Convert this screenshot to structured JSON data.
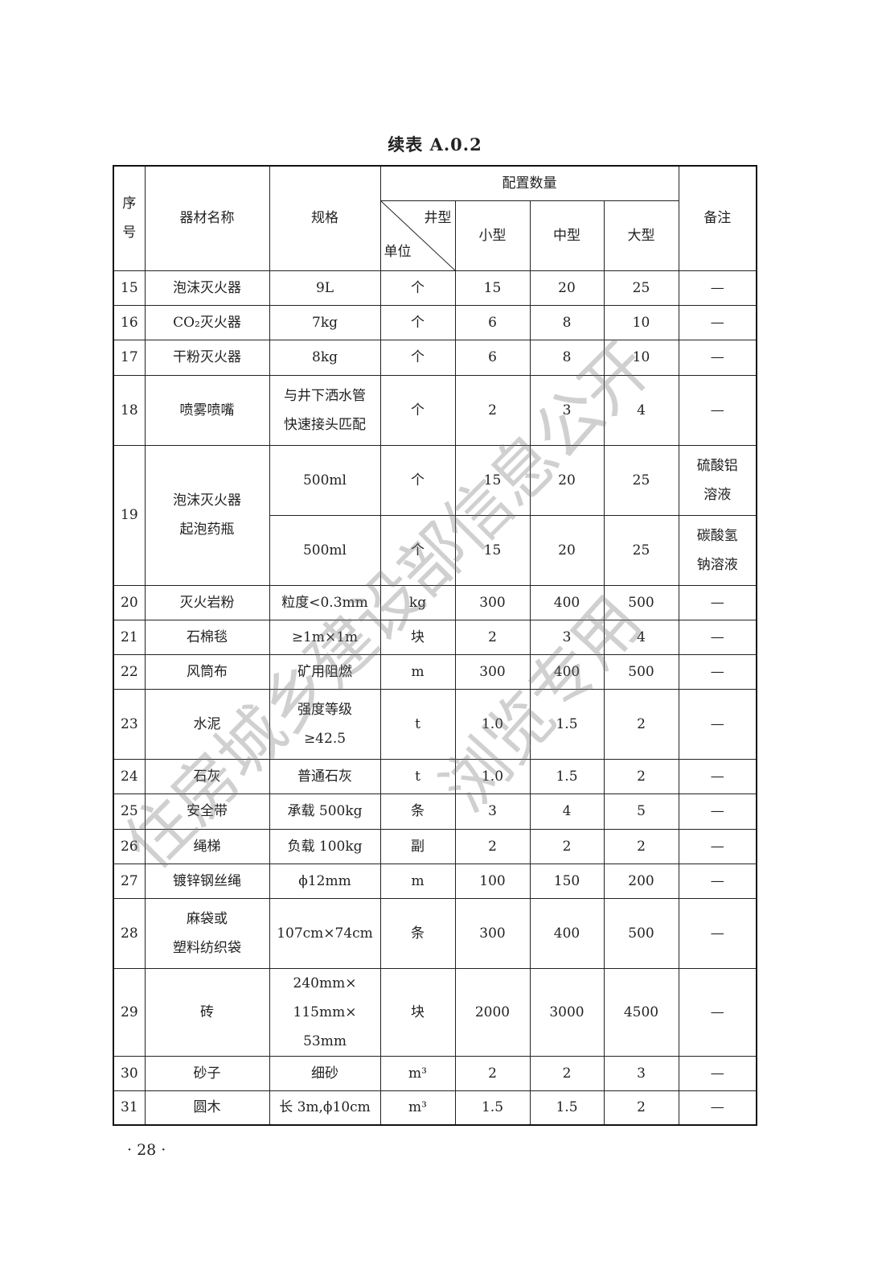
{
  "title": "续表 A.0.2",
  "header": {
    "index": "序号",
    "name": "器材名称",
    "spec": "规格",
    "quantity_group": "配置数量",
    "diag_top": "井型",
    "diag_bottom": "单位",
    "small": "小型",
    "medium": "中型",
    "large": "大型",
    "note": "备注"
  },
  "rows": [
    {
      "idx": "15",
      "name": "泡沫灭火器",
      "spec": "9L",
      "unit": "个",
      "small": "15",
      "medium": "20",
      "large": "25",
      "note": "—"
    },
    {
      "idx": "16",
      "name": "CO₂灭火器",
      "spec": "7kg",
      "unit": "个",
      "small": "6",
      "medium": "8",
      "large": "10",
      "note": "—"
    },
    {
      "idx": "17",
      "name": "干粉灭火器",
      "spec": "8kg",
      "unit": "个",
      "small": "6",
      "medium": "8",
      "large": "10",
      "note": "—"
    },
    {
      "idx": "18",
      "name": "喷雾喷嘴",
      "spec": "与井下洒水管\n快速接头匹配",
      "unit": "个",
      "small": "2",
      "medium": "3",
      "large": "4",
      "note": "—"
    },
    {
      "idx": "19",
      "name": "泡沫灭火器\n起泡药瓶",
      "sub": [
        {
          "spec": "500ml",
          "unit": "个",
          "small": "15",
          "medium": "20",
          "large": "25",
          "note": "硫酸铝\n溶液"
        },
        {
          "spec": "500ml",
          "unit": "个",
          "small": "15",
          "medium": "20",
          "large": "25",
          "note": "碳酸氢\n钠溶液"
        }
      ]
    },
    {
      "idx": "20",
      "name": "灭火岩粉",
      "spec": "粒度<0.3mm",
      "unit": "kg",
      "small": "300",
      "medium": "400",
      "large": "500",
      "note": "—"
    },
    {
      "idx": "21",
      "name": "石棉毯",
      "spec": "≥1m×1m",
      "unit": "块",
      "small": "2",
      "medium": "3",
      "large": "4",
      "note": "—"
    },
    {
      "idx": "22",
      "name": "风筒布",
      "spec": "矿用阻燃",
      "unit": "m",
      "small": "300",
      "medium": "400",
      "large": "500",
      "note": "—"
    },
    {
      "idx": "23",
      "name": "水泥",
      "spec": "强度等级\n≥42.5",
      "unit": "t",
      "small": "1.0",
      "medium": "1.5",
      "large": "2",
      "note": "—"
    },
    {
      "idx": "24",
      "name": "石灰",
      "spec": "普通石灰",
      "unit": "t",
      "small": "1.0",
      "medium": "1.5",
      "large": "2",
      "note": "—"
    },
    {
      "idx": "25",
      "name": "安全带",
      "spec": "承载 500kg",
      "unit": "条",
      "small": "3",
      "medium": "4",
      "large": "5",
      "note": "—"
    },
    {
      "idx": "26",
      "name": "绳梯",
      "spec": "负载 100kg",
      "unit": "副",
      "small": "2",
      "medium": "2",
      "large": "2",
      "note": "—"
    },
    {
      "idx": "27",
      "name": "镀锌钢丝绳",
      "spec": "ϕ12mm",
      "unit": "m",
      "small": "100",
      "medium": "150",
      "large": "200",
      "note": "—"
    },
    {
      "idx": "28",
      "name": "麻袋或\n塑料纺织袋",
      "spec": "107cm×74cm",
      "unit": "条",
      "small": "300",
      "medium": "400",
      "large": "500",
      "note": "—"
    },
    {
      "idx": "29",
      "name": "砖",
      "spec": "240mm×\n115mm×\n53mm",
      "unit": "块",
      "small": "2000",
      "medium": "3000",
      "large": "4500",
      "note": "—"
    },
    {
      "idx": "30",
      "name": "砂子",
      "spec": "细砂",
      "unit": "m³",
      "small": "2",
      "medium": "2",
      "large": "3",
      "note": "—"
    },
    {
      "idx": "31",
      "name": "圆木",
      "spec": "长 3m,ϕ10cm",
      "unit": "m³",
      "small": "1.5",
      "medium": "1.5",
      "large": "2",
      "note": "—"
    }
  ],
  "page_number": "· 28 ·",
  "watermark": {
    "line1": "住房城乡建设部信息公开",
    "line2": "浏览专用"
  }
}
